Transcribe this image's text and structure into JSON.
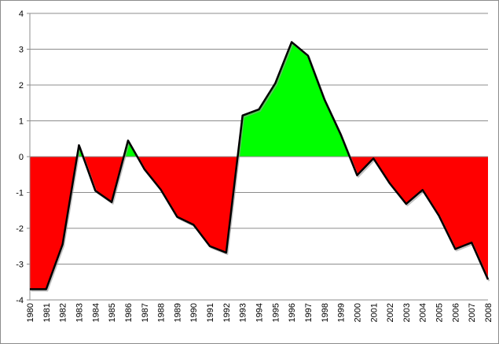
{
  "chart_data": {
    "type": "area",
    "x": [
      "1980",
      "1981",
      "1982",
      "1983",
      "1984",
      "1985",
      "1986",
      "1987",
      "1988",
      "1989",
      "1990",
      "1991",
      "1992",
      "1993",
      "1994",
      "1995",
      "1996",
      "1997",
      "1998",
      "1999",
      "2000",
      "2001",
      "2002",
      "2003",
      "2004",
      "2005",
      "2006",
      "2007",
      "2008"
    ],
    "values": [
      -3.7,
      -3.7,
      -2.45,
      0.32,
      -0.95,
      -1.27,
      0.45,
      -0.35,
      -0.92,
      -1.68,
      -1.9,
      -2.5,
      -2.68,
      1.15,
      1.32,
      2.05,
      3.2,
      2.82,
      1.6,
      0.62,
      -0.52,
      -0.05,
      -0.75,
      -1.32,
      -0.93,
      -1.65,
      -2.58,
      -2.4,
      -3.43
    ],
    "ylim": [
      -4,
      4
    ],
    "yticks": [
      "4",
      "3",
      "2",
      "1",
      "0",
      "-1",
      "-2",
      "-3",
      "-4"
    ],
    "grid": true,
    "legend": "none",
    "colors": {
      "positive_fill": "#00ff00",
      "negative_fill": "#ff0000",
      "line": "#000000",
      "grid": "#8c8c8c"
    }
  }
}
